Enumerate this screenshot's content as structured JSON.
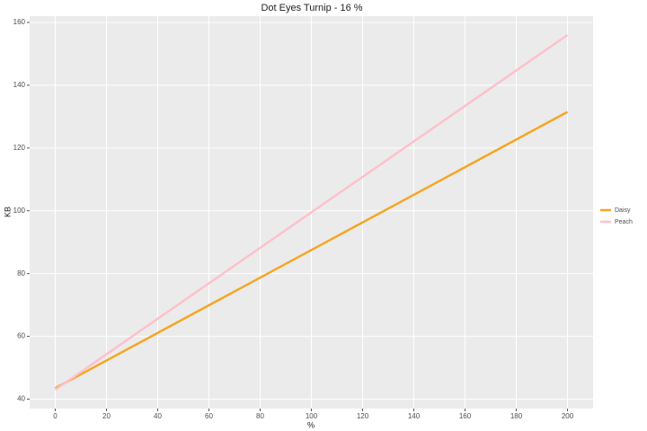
{
  "chart_data": {
    "type": "line",
    "title": "Dot Eyes Turnip -  16 %",
    "x_label": "%",
    "y_label": "KB",
    "x": [
      0,
      50,
      100,
      150,
      200
    ],
    "series": [
      {
        "name": "Daisy",
        "color": "#f5a623",
        "values": [
          43.5,
          65.5,
          87.5,
          109.5,
          131.5
        ]
      },
      {
        "name": "Peach",
        "color": "#ffc0cb",
        "values": [
          43,
          71.25,
          99.5,
          127.75,
          156
        ]
      }
    ],
    "xlim": [
      -10,
      210
    ],
    "xticks": [
      0,
      20,
      40,
      60,
      80,
      100,
      120,
      140,
      160,
      180,
      200
    ],
    "ylim": [
      37,
      162
    ],
    "yticks": [
      40,
      60,
      80,
      100,
      120,
      140,
      160
    ],
    "grid": true,
    "legend": "right"
  }
}
